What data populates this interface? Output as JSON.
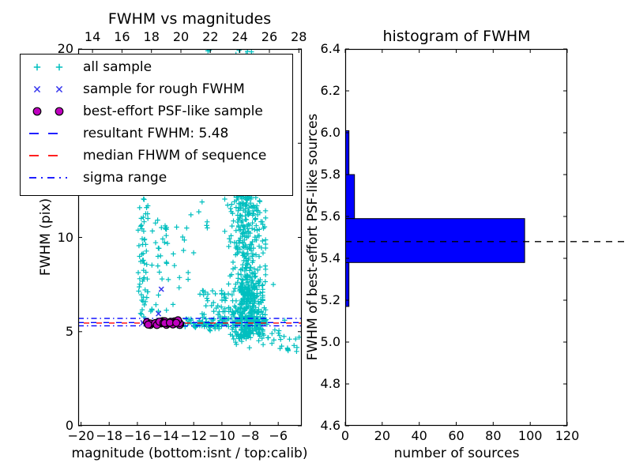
{
  "colors": {
    "background": "#FFFFFF",
    "text": "#000000",
    "all_sample": "#00BFBF",
    "rough_sample": "#3333EE",
    "psf_sample": "#BF00BF",
    "psf_edge": "#000000",
    "resultant_line": "#0000FF",
    "median_line": "#FF0000",
    "sigma_line": "#0000FF",
    "hist_bar": "#0000FF",
    "hist_bar_edge": "#000000",
    "hist_mean_line": "#000000"
  },
  "legend": {
    "entries": [
      {
        "label": "all sample",
        "type": "marker",
        "marker": "plus",
        "color": "#00BFBF"
      },
      {
        "label": "sample for rough FWHM",
        "type": "marker",
        "marker": "x",
        "color": "#3333EE"
      },
      {
        "label": "best-effort PSF-like sample",
        "type": "marker",
        "marker": "circle",
        "color": "#BF00BF",
        "edge": "#000000"
      },
      {
        "label": "resultant FWHM: 5.48",
        "type": "line",
        "style": "dashed",
        "color": "#0000FF"
      },
      {
        "label": "median FHWM of sequence",
        "type": "line",
        "style": "dashed",
        "color": "#FF0000"
      },
      {
        "label": "sigma range",
        "type": "line",
        "style": "dashdot",
        "color": "#0000FF"
      }
    ]
  },
  "chart_data": [
    {
      "type": "scatter",
      "title": "FWHM vs magnitudes",
      "xlabel": "magnitude (bottom:isnt / top:calib)",
      "ylabel": "FWHM (pix)",
      "xlim": [
        -20.2,
        -4.33
      ],
      "ylim": [
        0,
        20
      ],
      "xticks": [
        -20,
        -18,
        -16,
        -14,
        -12,
        -10,
        -8,
        -6
      ],
      "yticks": [
        0,
        5,
        10,
        15,
        20
      ],
      "top_axis": {
        "lim": [
          13.03,
          28.2
        ],
        "ticks": [
          14,
          16,
          18,
          20,
          22,
          24,
          26,
          28
        ]
      },
      "series": {
        "all_sample": {
          "label": "all sample",
          "marker": "+",
          "color": "#00BFBF",
          "clusters": [
            {
              "n": 55,
              "x": [
                -15.95,
                -15.25
              ],
              "y": [
                5.6,
                12.1
              ]
            },
            {
              "n": 30,
              "x": [
                -15.1,
                -13.8
              ],
              "y": [
                6.0,
                11.6
              ]
            },
            {
              "n": 18,
              "x": [
                -13.5,
                -10.9
              ],
              "y": [
                6.3,
                12.1
              ]
            },
            {
              "n": 420,
              "x": [
                -9.8,
                -6.9
              ],
              "y": [
                4.6,
                12.2
              ],
              "xc": -8.2,
              "xs": 0.62
            },
            {
              "n": 150,
              "x": [
                -9.4,
                -7.1
              ],
              "y": [
                4.8,
                7.6
              ],
              "xc": -8.1,
              "xs": 0.5
            },
            {
              "n": 90,
              "x": [
                -9.7,
                -7.0
              ],
              "y": [
                12.2,
                19.7
              ],
              "xc": -8.25,
              "xs": 0.55
            },
            {
              "n": 130,
              "x": [
                -13.2,
                -6.8
              ],
              "y": [
                5.22,
                5.68
              ]
            },
            {
              "n": 55,
              "x": [
                -11.5,
                -9.5
              ],
              "y": [
                5.0,
                7.2
              ]
            },
            {
              "n": 42,
              "x": [
                -9.3,
                -5.5
              ],
              "y": [
                4.1,
                5.2
              ]
            },
            {
              "n": 8,
              "x": [
                -5.5,
                -4.45
              ],
              "y": [
                3.8,
                4.9
              ]
            },
            {
              "n": 18,
              "x": [
                -15.9,
                -13.3
              ],
              "y": [
                12.2,
                19.6
              ]
            },
            {
              "n": 5,
              "x": [
                -11.3,
                -7.5
              ],
              "y": [
                19.7,
                19.95
              ]
            }
          ],
          "extra_points": [
            [
              -11.0,
              19.9
            ],
            [
              -7.9,
              19.85
            ],
            [
              -6.35,
              7.5
            ],
            [
              -5.95,
              5.05
            ],
            [
              -5.55,
              5.6
            ],
            [
              -5.2,
              4.6
            ],
            [
              -4.7,
              3.95
            ],
            [
              -15.6,
              6.6
            ],
            [
              -15.5,
              6.42
            ],
            [
              -15.05,
              6.08
            ],
            [
              -12.5,
              10.5
            ],
            [
              -12.2,
              11.2
            ]
          ]
        },
        "rough_fwhm": {
          "label": "sample for rough FWHM",
          "marker": "x",
          "color": "#3333EE",
          "points": [
            [
              -14.3,
              7.25
            ],
            [
              -14.5,
              5.95
            ],
            [
              -15.3,
              5.5
            ],
            [
              -14.9,
              5.42
            ],
            [
              -14.45,
              5.45
            ],
            [
              -13.9,
              5.4
            ],
            [
              -13.45,
              5.44
            ],
            [
              -15.6,
              5.47
            ],
            [
              -13.05,
              5.4
            ],
            [
              -14.15,
              5.52
            ]
          ]
        },
        "psf_like": {
          "label": "best-effort PSF-like sample",
          "marker": "o",
          "color": "#BF00BF",
          "edge_color": "#000000",
          "cluster": {
            "n": 30,
            "x": [
              -15.8,
              -12.95
            ],
            "y_mean": 5.45,
            "y_sigma": 0.07,
            "y_clamp": [
              5.33,
              5.6
            ]
          }
        }
      },
      "hlines": [
        {
          "y": 5.48,
          "color": "#0000FF",
          "style": "dashed",
          "label": "resultant FWHM: 5.48"
        },
        {
          "y": 5.455,
          "color": "#FF0000",
          "style": "dashed",
          "label": "median FHWM of sequence",
          "dash_offset": 9
        },
        {
          "y": 5.7,
          "color": "#0000FF",
          "style": "dashdot",
          "label": "sigma range upper"
        },
        {
          "y": 5.31,
          "color": "#0000FF",
          "style": "dashdot",
          "label": "sigma range lower"
        }
      ]
    },
    {
      "type": "bar-horizontal",
      "title": "histogram of FWHM",
      "xlabel": "number of sources",
      "ylabel": "FWHM of best-effort PSF-like sources",
      "xlim": [
        0,
        120
      ],
      "ylim": [
        4.6,
        6.4
      ],
      "xticks": [
        0,
        20,
        40,
        60,
        80,
        100,
        120
      ],
      "yticks": [
        4.6,
        4.8,
        5.0,
        5.2,
        5.4,
        5.6,
        5.8,
        6.0,
        6.2,
        6.4
      ],
      "bins": [
        {
          "from": 5.17,
          "to": 5.38,
          "count": 2
        },
        {
          "from": 5.38,
          "to": 5.59,
          "count": 97
        },
        {
          "from": 5.59,
          "to": 5.8,
          "count": 5
        },
        {
          "from": 5.8,
          "to": 6.01,
          "count": 2
        }
      ],
      "mean_line": {
        "y": 5.48,
        "color": "#000000",
        "style": "dashed",
        "extends_beyond_right_spine": true
      }
    }
  ]
}
